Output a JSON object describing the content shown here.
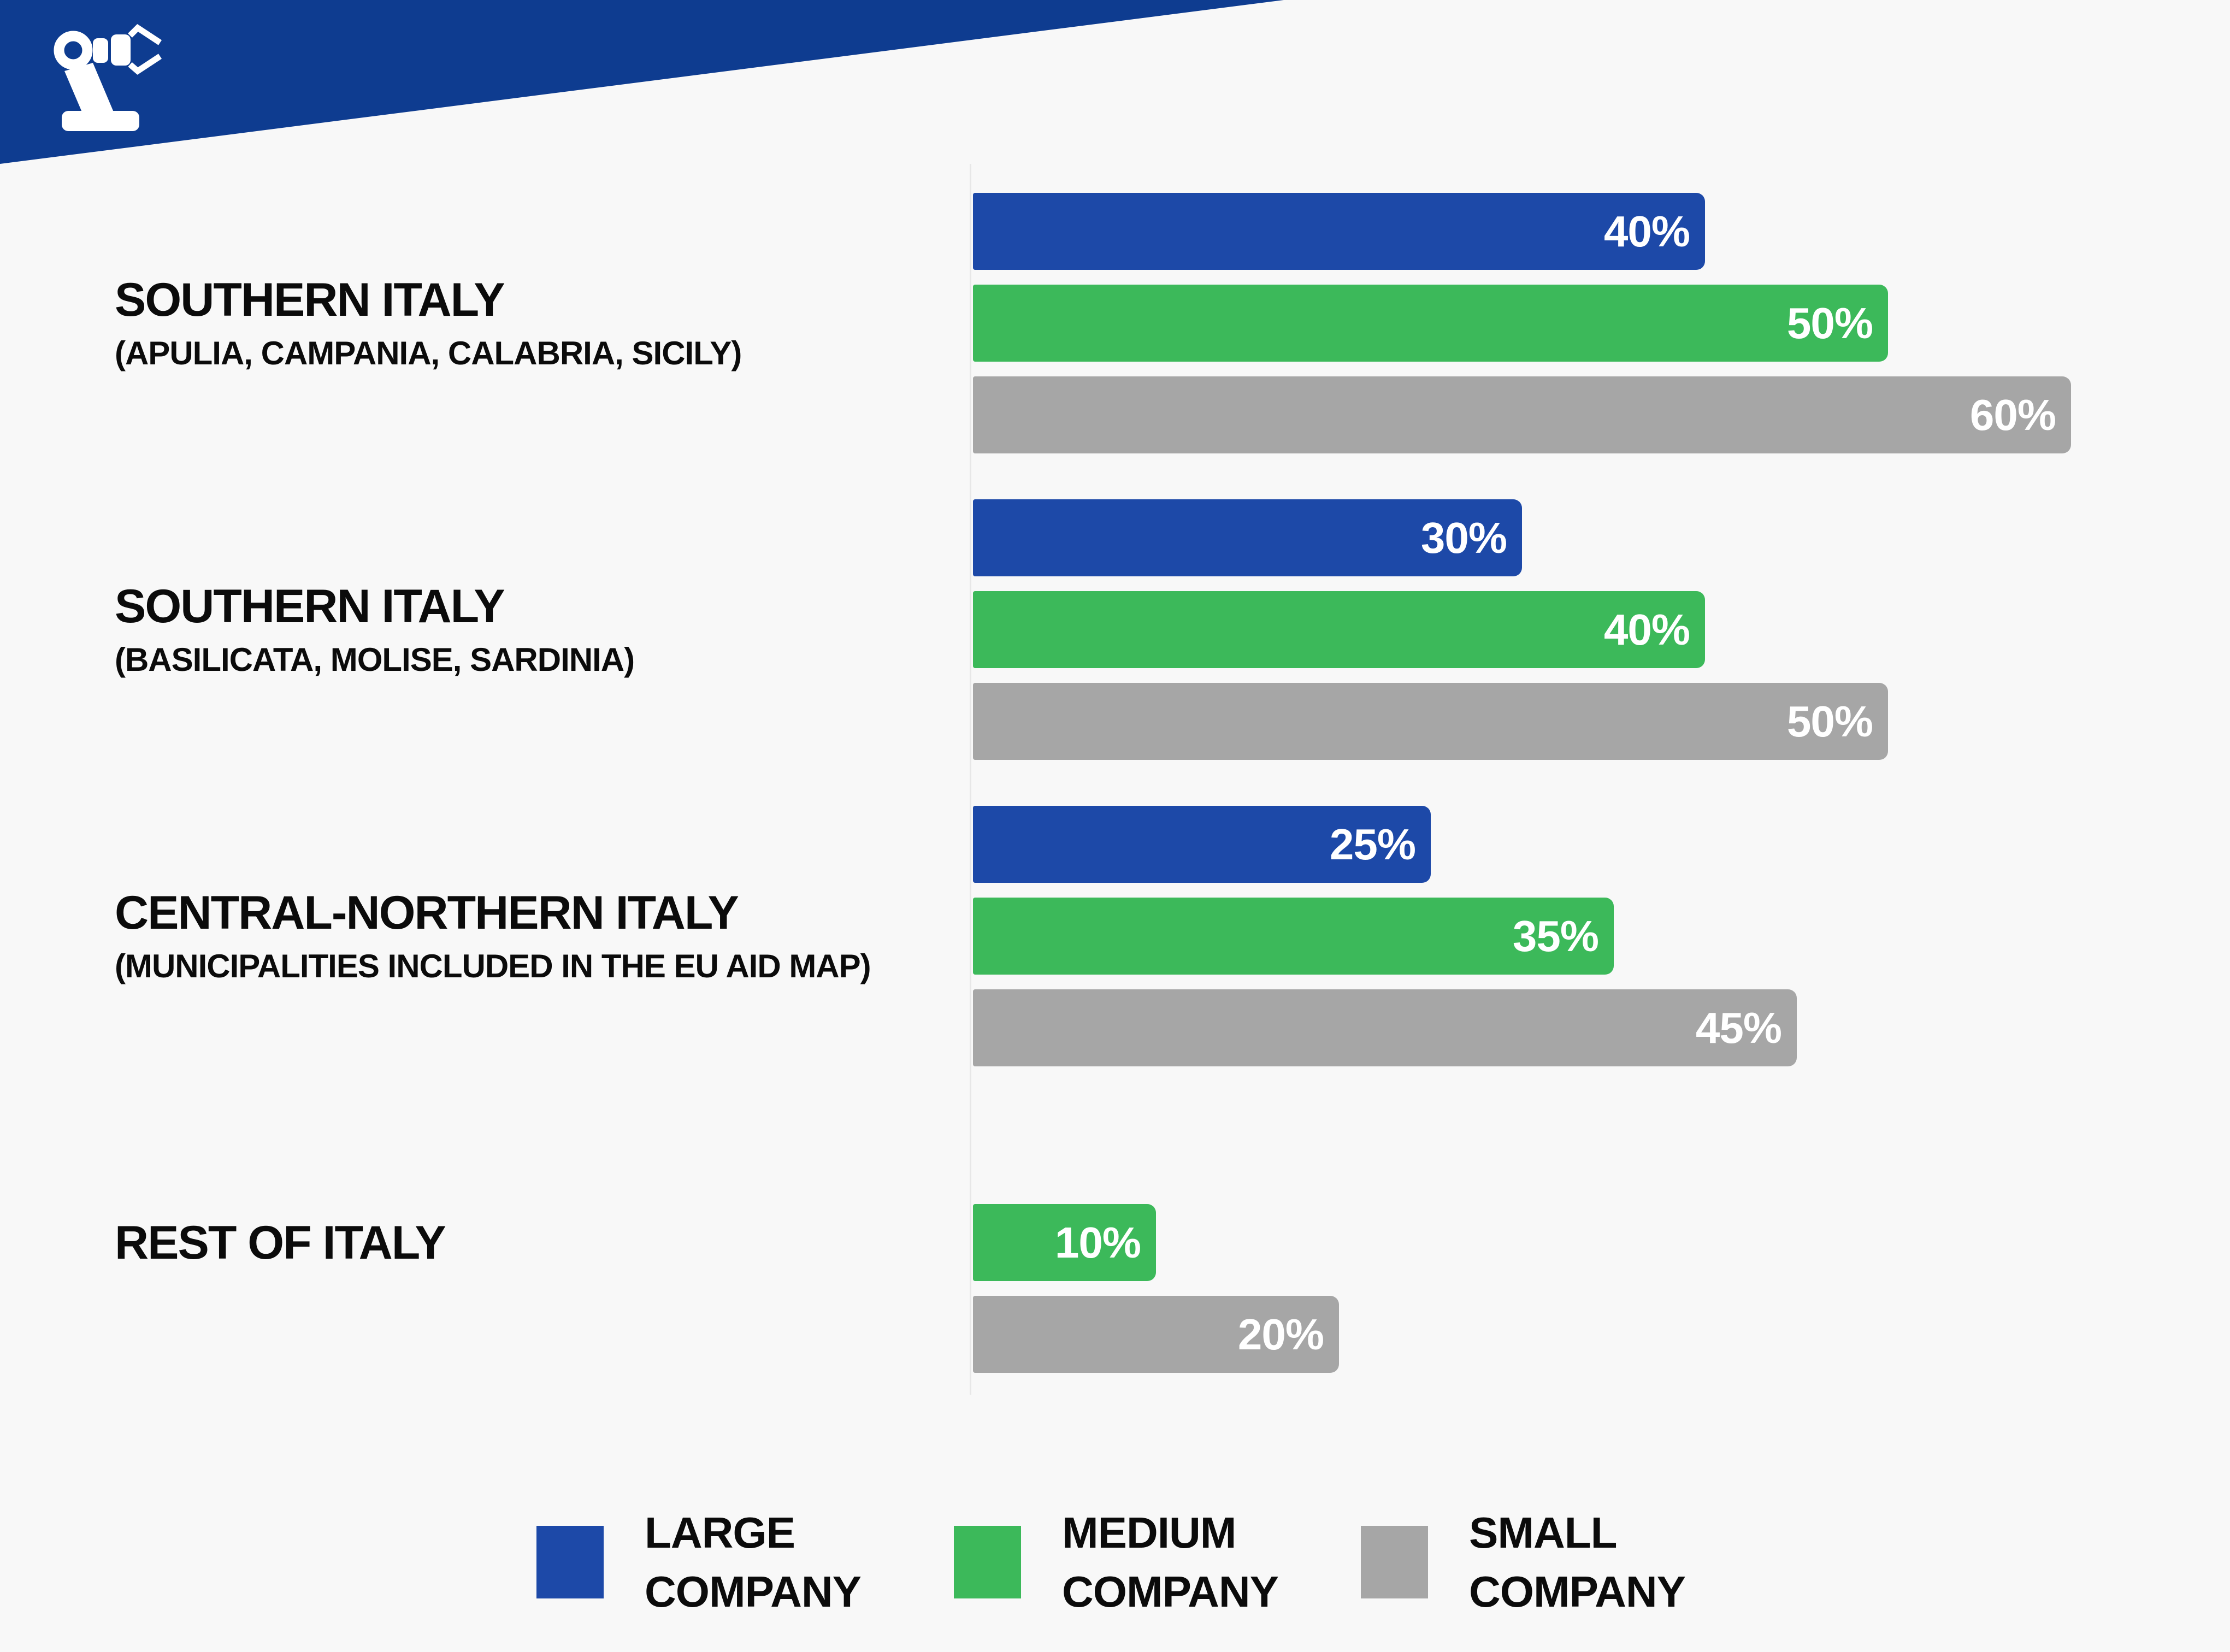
{
  "header": {
    "banner_color": "#0e3c90",
    "logo": "robot-arm-icon",
    "logo_color": "#ffffff"
  },
  "colors": {
    "background": "#f8f8f8",
    "axis_line": "#e7e7e7",
    "label_text": "#0b0b0b",
    "bar_value_text": "#ffffff"
  },
  "chart_data": {
    "type": "bar",
    "orientation": "horizontal",
    "unit": "%",
    "xlim": [
      0,
      60
    ],
    "grid": false,
    "legend_position": "bottom",
    "categories": [
      {
        "title": "SOUTHERN ITALY",
        "subtitle": "(APULIA, CAMPANIA, CALABRIA, SICILY)"
      },
      {
        "title": "SOUTHERN ITALY",
        "subtitle": "(BASILICATA, MOLISE, SARDINIA)"
      },
      {
        "title": "CENTRAL-NORTHERN ITALY",
        "subtitle": "(MUNICIPALITIES INCLUDED IN THE EU AID MAP)"
      },
      {
        "title": "REST OF ITALY",
        "subtitle": ""
      }
    ],
    "series": [
      {
        "name": "LARGE COMPANY",
        "legend_lines": [
          "LARGE",
          "COMPANY"
        ],
        "color": "#1d49a8",
        "values": [
          40,
          30,
          25,
          null
        ]
      },
      {
        "name": "MEDIUM COMPANY",
        "legend_lines": [
          "MEDIUM",
          "COMPANY"
        ],
        "color": "#3cb95a",
        "values": [
          50,
          40,
          35,
          10
        ]
      },
      {
        "name": "SMALL COMPANY",
        "legend_lines": [
          "SMALL",
          "COMPANY"
        ],
        "color": "#a6a6a6",
        "values": [
          60,
          50,
          45,
          20
        ]
      }
    ],
    "value_label_format": "{v}%"
  }
}
